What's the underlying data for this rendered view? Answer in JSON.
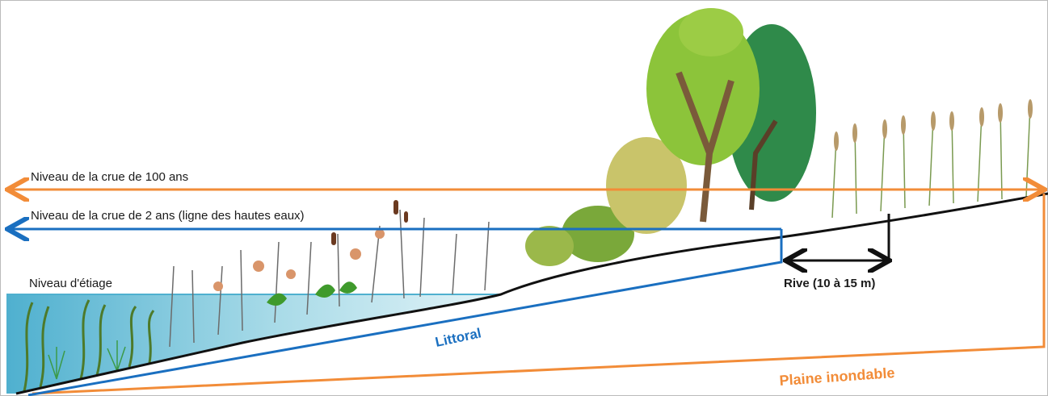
{
  "labels": {
    "flood_100": "Niveau de la crue de 100 ans",
    "flood_2": "Niveau de la crue de 2 ans (ligne des hautes eaux)",
    "low_water": "Niveau d'étiage",
    "littoral": "Littoral",
    "rive": "Rive (10 à 15 m)",
    "floodplain": "Plaine inondable"
  }
}
